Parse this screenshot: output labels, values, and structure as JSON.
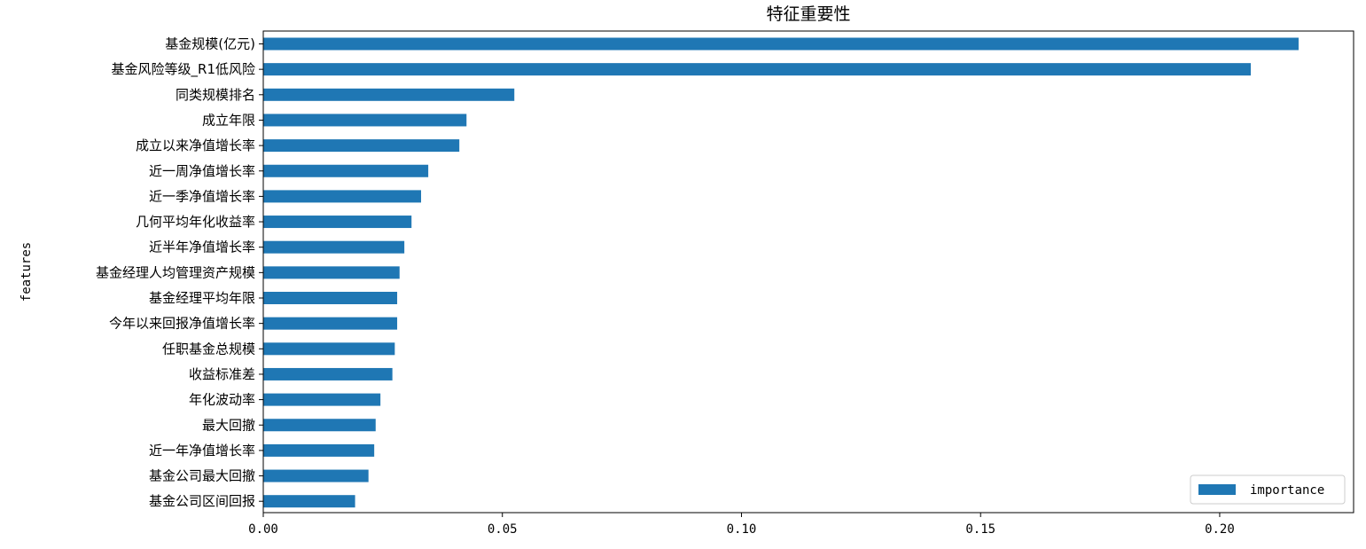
{
  "colors": {
    "bar": "#1f77b4",
    "axis": "#000000",
    "background": "#ffffff",
    "legend_border": "#cccccc"
  },
  "chart_data": {
    "type": "bar",
    "orientation": "horizontal",
    "title": "特征重要性",
    "ylabel": "features",
    "xlabel": "",
    "xlim": [
      0,
      0.228
    ],
    "xticks": [
      0.0,
      0.05,
      0.1,
      0.15,
      0.2
    ],
    "xtick_labels": [
      "0.00",
      "0.05",
      "0.10",
      "0.15",
      "0.20"
    ],
    "grid": false,
    "legend": {
      "position": "bottom-right",
      "entries": [
        "importance"
      ]
    },
    "categories": [
      "基金规模(亿元)",
      "基金风险等级_R1低风险",
      "同类规模排名",
      "成立年限",
      "成立以来净值增长率",
      "近一周净值增长率",
      "近一季净值增长率",
      "几何平均年化收益率",
      "近半年净值增长率",
      "基金经理人均管理资产规模",
      "基金经理平均年限",
      "今年以来回报净值增长率",
      "任职基金总规模",
      "收益标准差",
      "年化波动率",
      "最大回撤",
      "近一年净值增长率",
      "基金公司最大回撤",
      "基金公司区间回报"
    ],
    "series": [
      {
        "name": "importance",
        "values": [
          0.2165,
          0.2065,
          0.0525,
          0.0425,
          0.041,
          0.0345,
          0.033,
          0.031,
          0.0295,
          0.0285,
          0.028,
          0.028,
          0.0275,
          0.027,
          0.0245,
          0.0235,
          0.0232,
          0.022,
          0.0192
        ]
      }
    ]
  }
}
